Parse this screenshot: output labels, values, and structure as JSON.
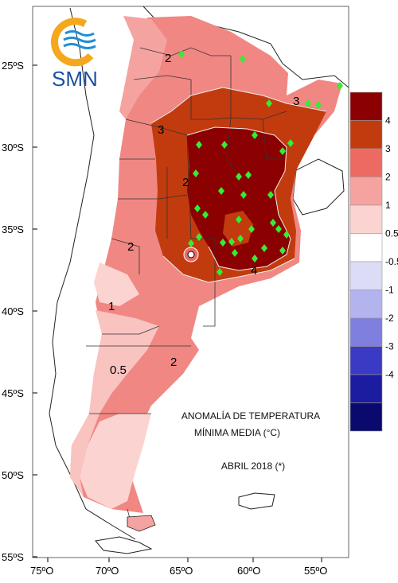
{
  "logo": {
    "text": "SMN"
  },
  "title": {
    "line1": "ANOMALÍA DE TEMPERATURA",
    "line2": "MÍNIMA MEDIA (°C)",
    "line3": "ABRIL 2018 (*)"
  },
  "axes": {
    "lat_ticks": [
      "25ºS",
      "30ºS",
      "35ºS",
      "40ºS",
      "45ºS",
      "50ºS",
      "55ºS"
    ],
    "lon_ticks": [
      "75ºO",
      "70ºO",
      "65ºO",
      "60ºO",
      "55ºO"
    ]
  },
  "legend": {
    "items": [
      {
        "label": "4",
        "color": "#8b0000"
      },
      {
        "label": "3",
        "color": "#c23b0f"
      },
      {
        "label": "2",
        "color": "#ec6a62"
      },
      {
        "label": "1",
        "color": "#f5a3a0"
      },
      {
        "label": "0.5",
        "color": "#fbd3d0"
      },
      {
        "label": "-0.5",
        "color": "#ffffff"
      },
      {
        "label": "-1",
        "color": "#dcdcf7"
      },
      {
        "label": "-2",
        "color": "#b3b3ee"
      },
      {
        "label": "-3",
        "color": "#7f7fe0"
      },
      {
        "label": "-4",
        "color": "#3a3ac4"
      },
      {
        "label": "",
        "color": "#1c1ca0"
      },
      {
        "label": "",
        "color": "#0a0a6e"
      }
    ]
  },
  "contour_labels": [
    "2",
    "3",
    "2",
    "3",
    "4",
    "2",
    "1",
    "0.5",
    "2"
  ],
  "colors": {
    "ocean": "#ffffff",
    "station": "#33ee33",
    "logo_orange": "#f5a81c",
    "logo_blue": "#1d8fd6"
  }
}
